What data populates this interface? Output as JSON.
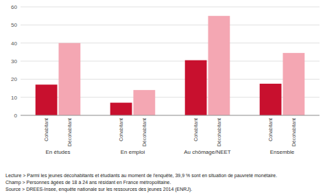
{
  "chart_data": {
    "type": "bar",
    "categories": [
      "En études",
      "En emploi",
      "Au chômage/NEET",
      "Ensemble"
    ],
    "series": [
      {
        "name": "Cohabitant",
        "color": "#c8102e",
        "values": [
          17,
          7,
          30.5,
          17.5
        ]
      },
      {
        "name": "Décohabitant",
        "color": "#f4a7b3",
        "values": [
          40,
          14,
          55,
          34.5
        ]
      }
    ],
    "ylim": [
      0,
      60
    ],
    "yticks": [
      0,
      10,
      20,
      30,
      40,
      50,
      60
    ],
    "grid": true,
    "annotations": [
      "Lecture > Parmi les jeunes décohabitants et étudiants au moment de l'enquête, 39,9 % sont en situation de pauvreté monétaire.",
      "Champ > Personnes âgées de 18 à 24 ans résidant en France métropolitaine.",
      "Source > DREES-Insee, enquête nationale sur les ressources des jeunes 2014 (ENRJ)."
    ]
  }
}
